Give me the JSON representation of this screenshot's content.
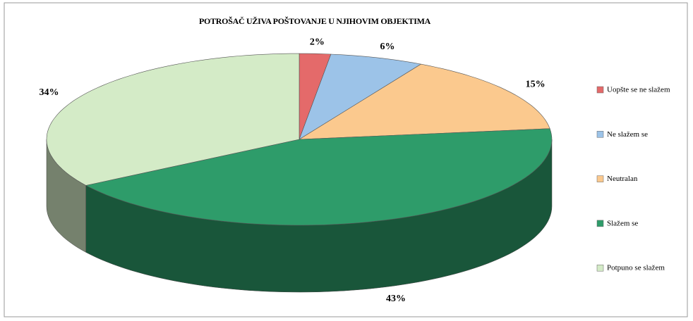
{
  "chart_data": {
    "type": "pie3d",
    "title": "POTROŠAČ UŽIVA POŠTOVANJE U NJIHOVIM OBJEKTIMA",
    "categories": [
      "Uopšte se ne slažem",
      "Ne slažem se",
      "Neutralan",
      "Slažem se",
      "Potpuno se slažem"
    ],
    "values": [
      2,
      6,
      15,
      43,
      34
    ],
    "value_labels": [
      "2%",
      "6%",
      "15%",
      "43%",
      "34%"
    ],
    "colors": [
      "#e46a6a",
      "#9cc3e8",
      "#fbc98e",
      "#2e9c6a",
      "#d4ebc7"
    ],
    "legend": "right"
  }
}
